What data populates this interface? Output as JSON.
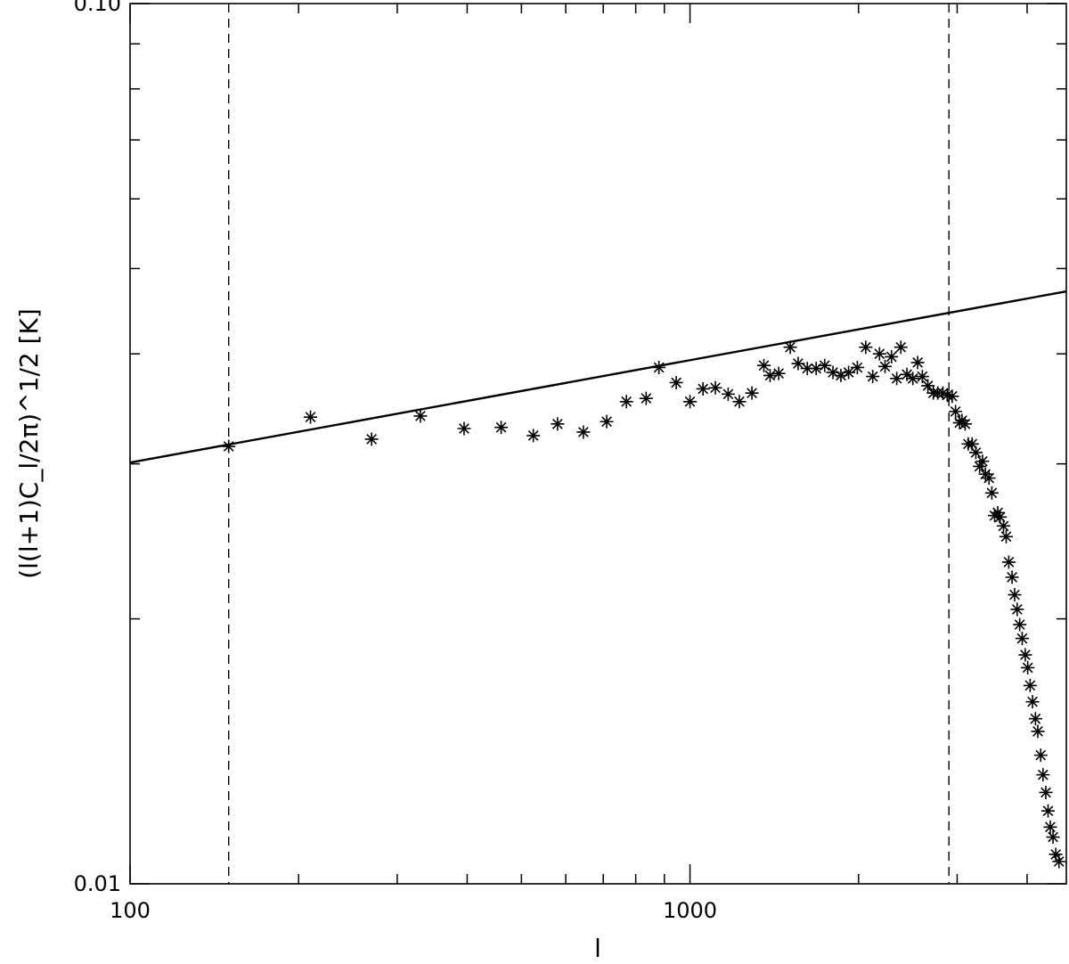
{
  "chart_data": {
    "type": "scatter",
    "title": "",
    "xlabel": "l",
    "ylabel": "(l(l+1)C_l/2π)^1/2 [K]",
    "xscale": "log",
    "yscale": "log",
    "xlim": [
      100,
      4700
    ],
    "ylim": [
      0.01,
      0.1
    ],
    "xticks": [
      {
        "value": 100,
        "label": "100"
      },
      {
        "value": 1000,
        "label": "1000"
      }
    ],
    "yticks": [
      {
        "value": 0.01,
        "label": "0.01"
      },
      {
        "value": 0.1,
        "label": "0.10"
      }
    ],
    "vlines": [
      150,
      2900
    ],
    "fit_line": {
      "x": [
        100,
        4700
      ],
      "y": [
        0.0301,
        0.0471
      ]
    },
    "series": [
      {
        "marker": "asterisk",
        "points": [
          [
            150,
            0.0314
          ],
          [
            210,
            0.0339
          ],
          [
            270,
            0.032
          ],
          [
            330,
            0.034
          ],
          [
            395,
            0.0329
          ],
          [
            460,
            0.033
          ],
          [
            525,
            0.0323
          ],
          [
            580,
            0.0333
          ],
          [
            645,
            0.0326
          ],
          [
            710,
            0.0335
          ],
          [
            770,
            0.0353
          ],
          [
            835,
            0.0356
          ],
          [
            880,
            0.0386
          ],
          [
            945,
            0.0371
          ],
          [
            1000,
            0.0353
          ],
          [
            1055,
            0.0365
          ],
          [
            1110,
            0.0366
          ],
          [
            1170,
            0.036
          ],
          [
            1225,
            0.0353
          ],
          [
            1290,
            0.0361
          ],
          [
            1355,
            0.0388
          ],
          [
            1390,
            0.0378
          ],
          [
            1440,
            0.038
          ],
          [
            1510,
            0.0407
          ],
          [
            1560,
            0.039
          ],
          [
            1620,
            0.0385
          ],
          [
            1680,
            0.0385
          ],
          [
            1740,
            0.0388
          ],
          [
            1800,
            0.0381
          ],
          [
            1860,
            0.0378
          ],
          [
            1920,
            0.0381
          ],
          [
            1990,
            0.0386
          ],
          [
            2060,
            0.0407
          ],
          [
            2120,
            0.0377
          ],
          [
            2180,
            0.04
          ],
          [
            2230,
            0.0387
          ],
          [
            2290,
            0.0397
          ],
          [
            2340,
            0.0375
          ],
          [
            2380,
            0.0407
          ],
          [
            2440,
            0.0379
          ],
          [
            2500,
            0.0375
          ],
          [
            2550,
            0.0391
          ],
          [
            2600,
            0.0377
          ],
          [
            2660,
            0.0368
          ],
          [
            2720,
            0.0361
          ],
          [
            2770,
            0.0361
          ],
          [
            2830,
            0.0361
          ],
          [
            2880,
            0.0359
          ],
          [
            2940,
            0.0358
          ],
          [
            2980,
            0.0344
          ],
          [
            3030,
            0.0334
          ],
          [
            3060,
            0.0336
          ],
          [
            3100,
            0.0333
          ],
          [
            3140,
            0.0316
          ],
          [
            3190,
            0.0316
          ],
          [
            3240,
            0.0309
          ],
          [
            3290,
            0.0298
          ],
          [
            3330,
            0.0302
          ],
          [
            3370,
            0.0292
          ],
          [
            3420,
            0.0289
          ],
          [
            3460,
            0.0278
          ],
          [
            3500,
            0.0262
          ],
          [
            3545,
            0.0264
          ],
          [
            3580,
            0.0261
          ],
          [
            3630,
            0.0255
          ],
          [
            3670,
            0.0248
          ],
          [
            3710,
            0.0232
          ],
          [
            3760,
            0.0223
          ],
          [
            3800,
            0.0213
          ],
          [
            3840,
            0.0205
          ],
          [
            3880,
            0.0197
          ],
          [
            3920,
            0.019
          ],
          [
            3970,
            0.0182
          ],
          [
            4010,
            0.0176
          ],
          [
            4050,
            0.0168
          ],
          [
            4090,
            0.0161
          ],
          [
            4140,
            0.0154
          ],
          [
            4180,
            0.0149
          ],
          [
            4230,
            0.014
          ],
          [
            4270,
            0.0133
          ],
          [
            4320,
            0.0127
          ],
          [
            4360,
            0.0121
          ],
          [
            4400,
            0.0116
          ],
          [
            4450,
            0.0113
          ],
          [
            4500,
            0.0108
          ],
          [
            4560,
            0.0106
          ]
        ]
      }
    ]
  }
}
